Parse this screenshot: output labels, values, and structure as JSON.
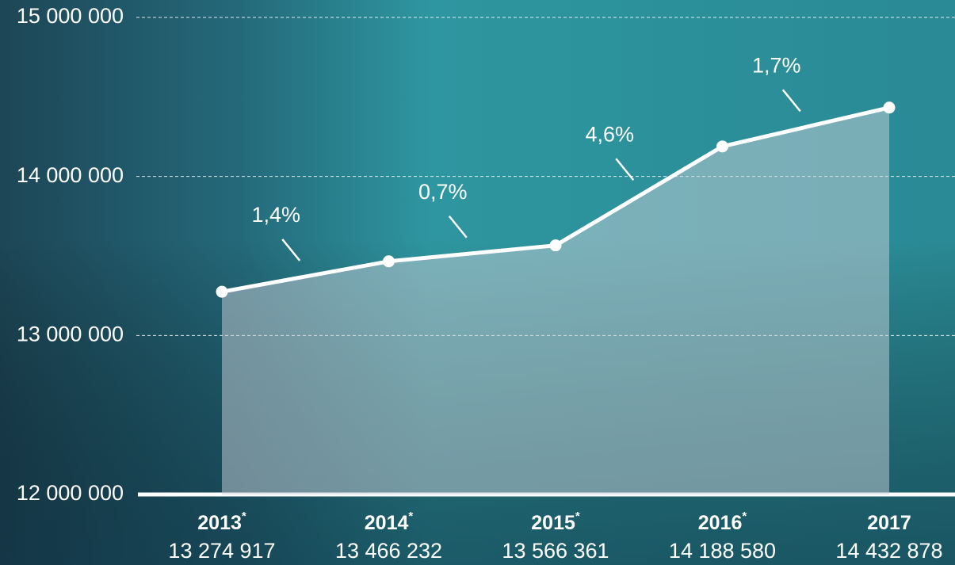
{
  "chart_data": {
    "type": "line",
    "categories": [
      "2013",
      "2014",
      "2015",
      "2016",
      "2017"
    ],
    "category_marks": [
      "*",
      "*",
      "*",
      "*",
      null
    ],
    "values": [
      13274917,
      13466232,
      13566361,
      14188580,
      14432878
    ],
    "value_labels": [
      "13 274 917",
      "13 466 232",
      "13 566 361",
      "14 188 580",
      "14 432 878"
    ],
    "annotations": [
      "1,4%",
      "0,7%",
      "4,6%",
      "1,7%"
    ],
    "color": "#ffffff",
    "ylim": [
      12000000,
      15000000
    ],
    "yticks": [
      {
        "value": 12000000,
        "label": "12 000 000"
      },
      {
        "value": 13000000,
        "label": "13 000 000"
      },
      {
        "value": 14000000,
        "label": "14 000 000"
      },
      {
        "value": 15000000,
        "label": "15 000 000"
      }
    ],
    "grid": true
  }
}
